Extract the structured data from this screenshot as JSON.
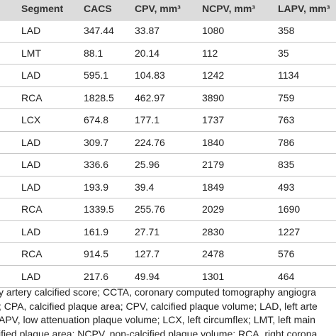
{
  "table": {
    "header": [
      "Segment",
      "CACS",
      "CPV, mm³",
      "NCPV, mm³",
      "LAPV, mm³"
    ],
    "rows": [
      [
        "LAD",
        "347.44",
        "33.87",
        "1080",
        "358"
      ],
      [
        "LMT",
        "88.1",
        "20.14",
        "112",
        "35"
      ],
      [
        "LAD",
        "595.1",
        "104.83",
        "1242",
        "1134"
      ],
      [
        "RCA",
        "1828.5",
        "462.97",
        "3890",
        "759"
      ],
      [
        "LCX",
        "674.8",
        "177.1",
        "1737",
        "763"
      ],
      [
        "LAD",
        "309.7",
        "224.76",
        "1840",
        "786"
      ],
      [
        "LAD",
        "336.6",
        "25.96",
        "2179",
        "835"
      ],
      [
        "LAD",
        "193.9",
        "39.4",
        "1849",
        "493"
      ],
      [
        "RCA",
        "1339.5",
        "255.76",
        "2029",
        "1690"
      ],
      [
        "LAD",
        "161.9",
        "27.71",
        "2830",
        "1227"
      ],
      [
        "RCA",
        "914.5",
        "127.7",
        "2478",
        "576"
      ],
      [
        "LAD",
        "217.6",
        "49.94",
        "1301",
        "464"
      ]
    ]
  },
  "footnote": [
    "y artery calcified score; CCTA, coronary computed tomography angiogra",
    "; CPA, calcified plaque area; CPV, calcified plaque volume; LAD, left arte",
    "APV, low attenuation plaque volume; LCX, left circumflex; LMT, left main",
    "ified plaque area; NCPV, non-calcified plaque volume; RCA, right corona"
  ]
}
